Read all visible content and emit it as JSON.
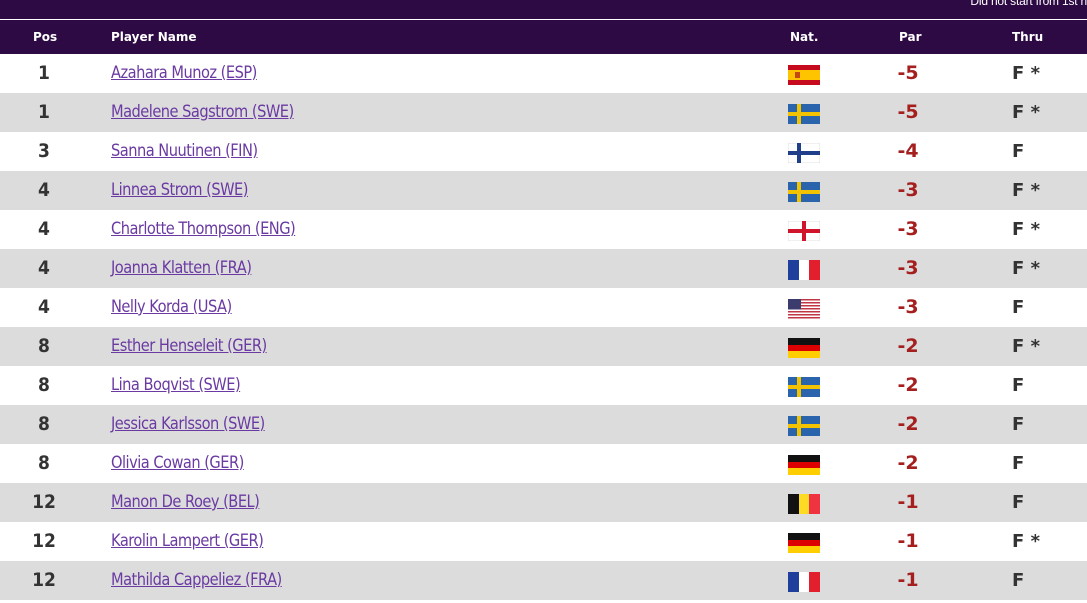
{
  "top_note": "Did not start from 1st h",
  "header": {
    "pos": "Pos",
    "player_name": "Player Name",
    "nat": "Nat.",
    "par": "Par",
    "thru": "Thru"
  },
  "colors": {
    "header_bg": "#2d0a44",
    "name_link": "#6a3aa2",
    "par_red": "#a51f1f",
    "row_alt": "#dcdcdc"
  },
  "rows": [
    {
      "pos": "1",
      "name": "Azahara Munoz (ESP)",
      "flag": "ESP",
      "par": "-5",
      "thru": "F *"
    },
    {
      "pos": "1",
      "name": "Madelene Sagstrom (SWE)",
      "flag": "SWE",
      "par": "-5",
      "thru": "F *"
    },
    {
      "pos": "3",
      "name": "Sanna Nuutinen (FIN)",
      "flag": "FIN",
      "par": "-4",
      "thru": "F"
    },
    {
      "pos": "4",
      "name": "Linnea Strom (SWE)",
      "flag": "SWE",
      "par": "-3",
      "thru": "F *"
    },
    {
      "pos": "4",
      "name": "Charlotte Thompson (ENG)",
      "flag": "ENG",
      "par": "-3",
      "thru": "F *"
    },
    {
      "pos": "4",
      "name": "Joanna Klatten (FRA)",
      "flag": "FRA",
      "par": "-3",
      "thru": "F *"
    },
    {
      "pos": "4",
      "name": "Nelly Korda (USA)",
      "flag": "USA",
      "par": "-3",
      "thru": "F"
    },
    {
      "pos": "8",
      "name": "Esther Henseleit (GER)",
      "flag": "GER",
      "par": "-2",
      "thru": "F *"
    },
    {
      "pos": "8",
      "name": "Lina Boqvist (SWE)",
      "flag": "SWE",
      "par": "-2",
      "thru": "F"
    },
    {
      "pos": "8",
      "name": "Jessica Karlsson (SWE)",
      "flag": "SWE",
      "par": "-2",
      "thru": "F"
    },
    {
      "pos": "8",
      "name": "Olivia Cowan (GER)",
      "flag": "GER",
      "par": "-2",
      "thru": "F"
    },
    {
      "pos": "12",
      "name": "Manon De Roey (BEL)",
      "flag": "BEL",
      "par": "-1",
      "thru": "F"
    },
    {
      "pos": "12",
      "name": "Karolin Lampert (GER)",
      "flag": "GER",
      "par": "-1",
      "thru": "F *"
    },
    {
      "pos": "12",
      "name": "Mathilda Cappeliez (FRA)",
      "flag": "FRA",
      "par": "-1",
      "thru": "F"
    }
  ]
}
